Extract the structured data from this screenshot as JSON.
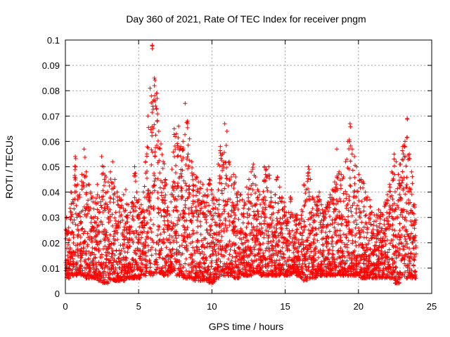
{
  "chart_data": {
    "type": "scatter",
    "title": "Day 360 of 2021, Rate Of TEC Index for receiver pngm",
    "xlabel": "GPS time / hours",
    "ylabel": "ROTI / TECUs",
    "xlim": [
      0,
      25
    ],
    "ylim": [
      0,
      0.1
    ],
    "x_ticks": [
      "0",
      "5",
      "10",
      "15",
      "20",
      "25"
    ],
    "y_ticks": [
      "0",
      "0.01",
      "0.02",
      "0.03",
      "0.04",
      "0.05",
      "0.06",
      "0.07",
      "0.08",
      "0.09",
      "0.1"
    ],
    "grid": true,
    "marker": "+",
    "color": "#ff0000",
    "series": [
      {
        "x": [
          0.0,
          0.15,
          0.3,
          0.45,
          0.6,
          0.75,
          0.9,
          1.05,
          1.2,
          1.35,
          1.5,
          1.65,
          1.8,
          1.95,
          2.1,
          2.25,
          2.4,
          2.55,
          2.7,
          2.85,
          3.0,
          3.15,
          3.3,
          3.45,
          3.6,
          3.75,
          3.9,
          4.05,
          4.2,
          4.35,
          4.5,
          4.65,
          4.8,
          4.95,
          5.1,
          5.25,
          5.4,
          5.55,
          5.7,
          5.85,
          6.0,
          6.15,
          6.3,
          6.45,
          6.6,
          6.75,
          6.9,
          7.05,
          7.2,
          7.35,
          7.5,
          7.65,
          7.8,
          7.95,
          8.1,
          8.25,
          8.4,
          8.55,
          8.7,
          8.85,
          9.0,
          9.15,
          9.3,
          9.45,
          9.6,
          9.75,
          9.9,
          10.05,
          10.2,
          10.35,
          10.5,
          10.65,
          10.8,
          10.95,
          11.1,
          11.25,
          11.4,
          11.55,
          11.7,
          11.85,
          12.0,
          12.15,
          12.3,
          12.45,
          12.6,
          12.75,
          12.9,
          13.05,
          13.2,
          13.35,
          13.5,
          13.65,
          13.8,
          13.95,
          14.1,
          14.25,
          14.4,
          14.55,
          14.7,
          14.85,
          15.0,
          15.15,
          15.3,
          15.45,
          15.6,
          15.75,
          15.9,
          16.05,
          16.2,
          16.35,
          16.5,
          16.65,
          16.8,
          16.95,
          17.1,
          17.25,
          17.4,
          17.55,
          17.7,
          17.85,
          18.0,
          18.15,
          18.3,
          18.45,
          18.6,
          18.75,
          18.9,
          19.05,
          19.2,
          19.35,
          19.5,
          19.65,
          19.8,
          19.95,
          20.1,
          20.25,
          20.4,
          20.55,
          20.7,
          20.85,
          21.0,
          21.15,
          21.3,
          21.45,
          21.6,
          21.75,
          21.9,
          22.05,
          22.2,
          22.35,
          22.5,
          22.65,
          22.8,
          22.95,
          23.1,
          23.25,
          23.4,
          23.55,
          23.7,
          23.85
        ],
        "y_low": [
          0.006,
          0.006,
          0.007,
          0.007,
          0.007,
          0.007,
          0.008,
          0.007,
          0.007,
          0.006,
          0.006,
          0.006,
          0.006,
          0.006,
          0.006,
          0.005,
          0.005,
          0.004,
          0.004,
          0.004,
          0.005,
          0.005,
          0.005,
          0.005,
          0.005,
          0.005,
          0.005,
          0.006,
          0.006,
          0.006,
          0.006,
          0.006,
          0.006,
          0.006,
          0.006,
          0.007,
          0.007,
          0.007,
          0.007,
          0.007,
          0.008,
          0.008,
          0.008,
          0.008,
          0.007,
          0.007,
          0.007,
          0.008,
          0.008,
          0.008,
          0.007,
          0.007,
          0.007,
          0.006,
          0.006,
          0.006,
          0.006,
          0.006,
          0.005,
          0.005,
          0.005,
          0.005,
          0.005,
          0.005,
          0.005,
          0.004,
          0.004,
          0.004,
          0.006,
          0.006,
          0.006,
          0.007,
          0.007,
          0.007,
          0.007,
          0.007,
          0.006,
          0.006,
          0.006,
          0.007,
          0.007,
          0.007,
          0.007,
          0.007,
          0.007,
          0.008,
          0.008,
          0.008,
          0.008,
          0.007,
          0.007,
          0.007,
          0.007,
          0.007,
          0.007,
          0.007,
          0.007,
          0.007,
          0.007,
          0.007,
          0.007,
          0.007,
          0.007,
          0.008,
          0.008,
          0.007,
          0.007,
          0.006,
          0.005,
          0.005,
          0.006,
          0.006,
          0.006,
          0.006,
          0.007,
          0.007,
          0.007,
          0.007,
          0.007,
          0.007,
          0.007,
          0.007,
          0.007,
          0.007,
          0.007,
          0.007,
          0.007,
          0.007,
          0.007,
          0.007,
          0.007,
          0.007,
          0.007,
          0.007,
          0.006,
          0.006,
          0.006,
          0.006,
          0.006,
          0.006,
          0.006,
          0.006,
          0.006,
          0.006,
          0.006,
          0.006,
          0.006,
          0.006,
          0.006,
          0.006,
          0.004,
          0.004,
          0.006,
          0.006,
          0.006,
          0.006,
          0.006,
          0.006,
          0.006,
          0.006
        ],
        "y_high": [
          0.03,
          0.026,
          0.04,
          0.037,
          0.054,
          0.043,
          0.039,
          0.047,
          0.057,
          0.048,
          0.043,
          0.04,
          0.038,
          0.036,
          0.043,
          0.038,
          0.054,
          0.05,
          0.046,
          0.044,
          0.048,
          0.052,
          0.045,
          0.04,
          0.038,
          0.037,
          0.039,
          0.041,
          0.035,
          0.032,
          0.036,
          0.05,
          0.04,
          0.037,
          0.035,
          0.04,
          0.052,
          0.07,
          0.081,
          0.098,
          0.085,
          0.079,
          0.064,
          0.059,
          0.052,
          0.045,
          0.034,
          0.031,
          0.049,
          0.065,
          0.063,
          0.066,
          0.058,
          0.06,
          0.075,
          0.068,
          0.061,
          0.052,
          0.047,
          0.046,
          0.044,
          0.044,
          0.043,
          0.039,
          0.041,
          0.045,
          0.041,
          0.038,
          0.037,
          0.051,
          0.058,
          0.055,
          0.067,
          0.064,
          0.052,
          0.046,
          0.047,
          0.046,
          0.04,
          0.039,
          0.037,
          0.036,
          0.042,
          0.045,
          0.048,
          0.051,
          0.046,
          0.041,
          0.039,
          0.037,
          0.05,
          0.049,
          0.05,
          0.04,
          0.034,
          0.039,
          0.046,
          0.042,
          0.038,
          0.036,
          0.032,
          0.032,
          0.038,
          0.031,
          0.031,
          0.031,
          0.029,
          0.033,
          0.043,
          0.041,
          0.05,
          0.045,
          0.038,
          0.036,
          0.038,
          0.04,
          0.035,
          0.032,
          0.034,
          0.036,
          0.039,
          0.041,
          0.044,
          0.057,
          0.048,
          0.047,
          0.046,
          0.052,
          0.06,
          0.067,
          0.057,
          0.054,
          0.05,
          0.047,
          0.045,
          0.044,
          0.04,
          0.038,
          0.037,
          0.032,
          0.031,
          0.031,
          0.033,
          0.032,
          0.031,
          0.036,
          0.039,
          0.043,
          0.048,
          0.055,
          0.052,
          0.047,
          0.051,
          0.058,
          0.06,
          0.069,
          0.055,
          0.048,
          0.035,
          0.029
        ]
      }
    ]
  }
}
